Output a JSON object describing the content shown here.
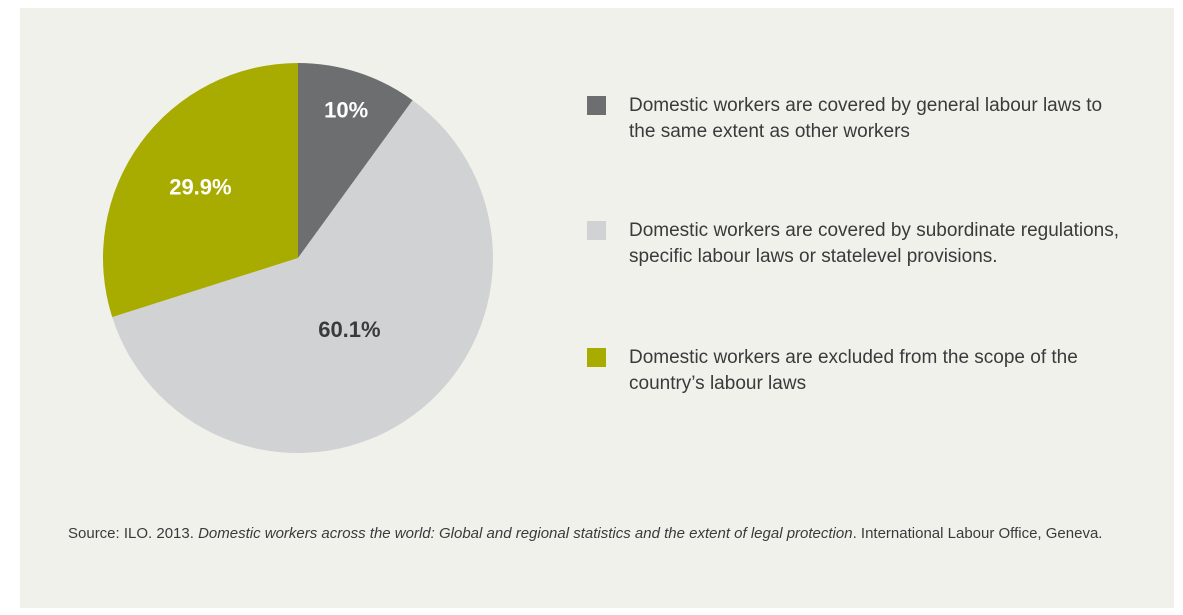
{
  "chart_data": {
    "type": "pie",
    "slices": [
      {
        "label": "Domestic workers are covered by general labour laws to the same extent as other workers",
        "value": 10,
        "display": "10%",
        "color": "#6d6e70",
        "text_color": "#ffffff"
      },
      {
        "label": "Domestic workers are covered by subordinate regulations, specific labour laws or statelevel provisions.",
        "value": 60.1,
        "display": "60.1%",
        "color": "#d1d2d4",
        "text_color": "#3a3a3a"
      },
      {
        "label": "Domestic workers are excluded from the scope of the country’s labour laws",
        "value": 29.9,
        "display": "29.9%",
        "color": "#a8ab00",
        "text_color": "#ffffff"
      }
    ],
    "start_angle": "12 o'clock",
    "direction": "clockwise",
    "legend_position": "right"
  },
  "source": {
    "prefix": "Source: ILO. 2013. ",
    "title": "Domestic workers across the world: Global and regional statistics and the extent of legal protection",
    "suffix": ". International Labour Office, Geneva."
  }
}
